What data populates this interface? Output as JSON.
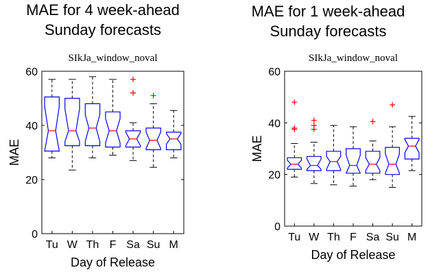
{
  "headings": [
    {
      "line1": "MAE for 4 week-ahead",
      "line2": "Sunday forecasts"
    },
    {
      "line1": "MAE for 1 week-ahead",
      "line2": "Sunday forecasts"
    }
  ],
  "colors": {
    "box": "#0000ff",
    "median": "#ff0000",
    "whisker": "#000000",
    "outlier": "#ff0000",
    "axis": "#000000"
  },
  "chart_data": [
    {
      "type": "boxplot",
      "notched": true,
      "title": "SIkJa_window_noval",
      "xlabel": "Day of Release",
      "ylabel": "MAE",
      "ylim": [
        0,
        60
      ],
      "yticks": [
        0,
        20,
        40,
        60
      ],
      "grid": false,
      "categories": [
        "Tu",
        "W",
        "Th",
        "F",
        "Sa",
        "Su",
        "M"
      ],
      "boxes": [
        {
          "category": "Tu",
          "min": 28,
          "q1": 30.5,
          "median": 38,
          "q3": 50.5,
          "max": 57,
          "notch_low": 30.5,
          "notch_high": 47,
          "outliers": []
        },
        {
          "category": "W",
          "min": 23.5,
          "q1": 32.5,
          "median": 38,
          "q3": 50,
          "max": 57,
          "notch_low": 34,
          "notch_high": 46,
          "outliers": []
        },
        {
          "category": "Th",
          "min": 28,
          "q1": 32.5,
          "median": 39,
          "q3": 48,
          "max": 58,
          "notch_low": 34,
          "notch_high": 44,
          "outliers": []
        },
        {
          "category": "F",
          "min": 29,
          "q1": 32,
          "median": 38,
          "q3": 45,
          "max": 57,
          "notch_low": 33.5,
          "notch_high": 42.5,
          "outliers": []
        },
        {
          "category": "Sa",
          "min": 27,
          "q1": 32,
          "median": 35,
          "q3": 38,
          "max": 41,
          "notch_low": 32.5,
          "notch_high": 37.5,
          "outliers": [
            57,
            52
          ]
        },
        {
          "category": "Su",
          "min": 24.5,
          "q1": 31,
          "median": 34.5,
          "q3": 39,
          "max": 48,
          "notch_low": 31.5,
          "notch_high": 37.5,
          "outliers": [
            51
          ]
        },
        {
          "category": "M",
          "min": 28,
          "q1": 31,
          "median": 35,
          "q3": 37.5,
          "max": 45.5,
          "notch_low": 33,
          "notch_high": 37,
          "outliers": []
        }
      ]
    },
    {
      "type": "boxplot",
      "notched": true,
      "title": "SIkJa_window_noval",
      "xlabel": "Day of Release",
      "ylabel": "MAE",
      "ylim": [
        0,
        60
      ],
      "yticks": [
        0,
        20,
        40,
        60
      ],
      "grid": false,
      "categories": [
        "Tu",
        "W",
        "Th",
        "F",
        "Sa",
        "Su",
        "M"
      ],
      "boxes": [
        {
          "category": "Tu",
          "min": 19,
          "q1": 22,
          "median": 24,
          "q3": 26.5,
          "max": 32,
          "notch_low": 22.5,
          "notch_high": 25.5,
          "outliers": [
            48,
            38,
            37.5
          ]
        },
        {
          "category": "W",
          "min": 16.5,
          "q1": 21.5,
          "median": 23.5,
          "q3": 27,
          "max": 32.5,
          "notch_low": 22,
          "notch_high": 26,
          "outliers": [
            41,
            39,
            37.5
          ]
        },
        {
          "category": "Th",
          "min": 16,
          "q1": 21.5,
          "median": 25,
          "q3": 29,
          "max": 39,
          "notch_low": 22,
          "notch_high": 27,
          "outliers": []
        },
        {
          "category": "F",
          "min": 15.5,
          "q1": 20.5,
          "median": 23.5,
          "q3": 30,
          "max": 38.5,
          "notch_low": 20.5,
          "notch_high": 27.5,
          "outliers": []
        },
        {
          "category": "Sa",
          "min": 18,
          "q1": 20.5,
          "median": 24,
          "q3": 29,
          "max": 33,
          "notch_low": 21.5,
          "notch_high": 26.5,
          "outliers": [
            40.5
          ]
        },
        {
          "category": "Su",
          "min": 15,
          "q1": 20,
          "median": 24,
          "q3": 30.5,
          "max": 38.5,
          "notch_low": 20.5,
          "notch_high": 28,
          "outliers": [
            47
          ]
        },
        {
          "category": "M",
          "min": 21.5,
          "q1": 26,
          "median": 31,
          "q3": 34,
          "max": 42.5,
          "notch_low": 28.5,
          "notch_high": 33.5,
          "outliers": []
        }
      ]
    }
  ]
}
